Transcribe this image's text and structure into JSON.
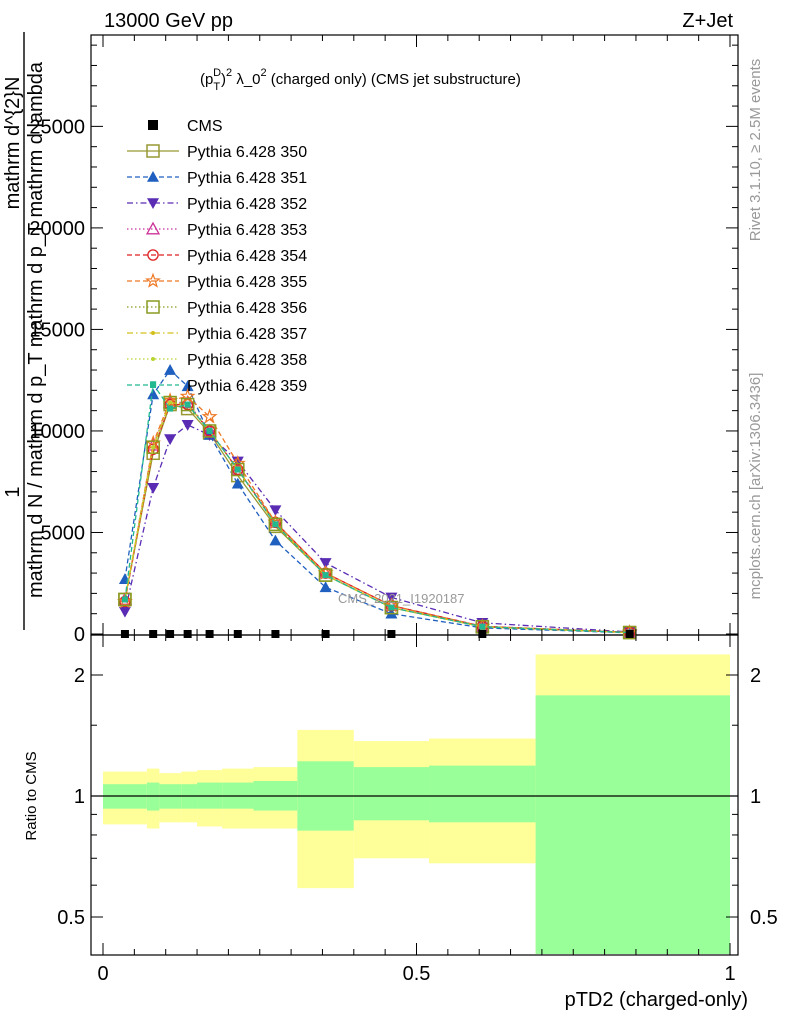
{
  "header": {
    "left": "13000 GeV pp",
    "right": "Z+Jet"
  },
  "plot": {
    "title": "(p_T^D)^2 λ_0^2 (charged only) (CMS jet substructure)",
    "ylabel_top": "1",
    "ylabel_numerator": "mathrm d^{2}N",
    "ylabel_denominator": "mathrm d N / mathrm d p_T mathrm d p_T mathrm d lambda",
    "xlabel": "pTD2 (charged-only)",
    "ratio_ylabel": "Ratio to CMS",
    "watermark": "CMS_2021_I1920187",
    "side_label_1": "Rivet 3.1.10, ≥ 2.5M events",
    "side_label_2": "mcplots.cern.ch [arXiv:1306.3436]"
  },
  "colors": {
    "band_inner": "#99ff99",
    "band_outer": "#ffff99",
    "cms": "#000000"
  },
  "chart_data": [
    {
      "type": "line",
      "title": "(p_T^D)^2 λ_0^2 (charged only) (CMS jet substructure)",
      "xlim": [
        0,
        1
      ],
      "ylim": [
        0,
        29500
      ],
      "yticks": [
        0,
        5000,
        10000,
        15000,
        20000,
        25000
      ],
      "ytick_labels": [
        "0",
        "5000",
        "10000",
        "15000",
        "20000",
        "25000"
      ],
      "xticks": [
        0,
        0.5,
        1
      ],
      "xtick_labels": [
        "0",
        "0.5",
        "1"
      ],
      "legend_placement": "top-left",
      "x": [
        0.035,
        0.08,
        0.107,
        0.135,
        0.17,
        0.215,
        0.275,
        0.355,
        0.46,
        0.605,
        0.84
      ],
      "series": [
        {
          "name": "CMS",
          "color": "#000000",
          "marker": "square-filled",
          "dash": "none",
          "values": [
            0,
            0,
            0,
            0,
            0,
            0,
            0,
            0,
            0,
            0,
            0
          ]
        },
        {
          "name": "Pythia 6.428 350",
          "color": "#999933",
          "marker": "square-open",
          "dash": "solid",
          "values": [
            1700,
            8900,
            11300,
            11100,
            9900,
            7800,
            5300,
            2900,
            1300,
            350,
            70
          ]
        },
        {
          "name": "Pythia 6.428 351",
          "color": "#1f5fbf",
          "marker": "triangle-up-filled",
          "dash": "dashed",
          "values": [
            2700,
            11800,
            13000,
            12200,
            9800,
            7400,
            4600,
            2300,
            1000,
            300,
            60
          ]
        },
        {
          "name": "Pythia 6.428 352",
          "color": "#5a2cb4",
          "marker": "triangle-down-filled",
          "dash": "dashdot",
          "values": [
            1100,
            7200,
            9600,
            10300,
            9800,
            8500,
            6100,
            3500,
            1800,
            550,
            100
          ]
        },
        {
          "name": "Pythia 6.428 353",
          "color": "#cc3399",
          "marker": "triangle-up-open",
          "dash": "dotted",
          "values": [
            1700,
            9300,
            11400,
            11400,
            10000,
            8100,
            5500,
            3000,
            1400,
            380,
            80
          ]
        },
        {
          "name": "Pythia 6.428 354",
          "color": "#dd2222",
          "marker": "circle-open",
          "dash": "dashed",
          "values": [
            1600,
            9100,
            11300,
            11300,
            10000,
            8100,
            5500,
            3000,
            1400,
            380,
            80
          ]
        },
        {
          "name": "Pythia 6.428 355",
          "color": "#ee7722",
          "marker": "star-open",
          "dash": "dashed",
          "values": [
            1600,
            9400,
            11500,
            11700,
            10700,
            8400,
            5500,
            3000,
            1400,
            370,
            80
          ]
        },
        {
          "name": "Pythia 6.428 356",
          "color": "#8a9a20",
          "marker": "square-open",
          "dash": "dotted",
          "values": [
            1700,
            9200,
            11400,
            11300,
            10000,
            8100,
            5400,
            2900,
            1300,
            360,
            70
          ]
        },
        {
          "name": "Pythia 6.428 357",
          "color": "#d4c01a",
          "marker": "small-dot",
          "dash": "dashdot",
          "values": [
            1700,
            9200,
            11400,
            11300,
            10000,
            8100,
            5400,
            2900,
            1300,
            360,
            70
          ]
        },
        {
          "name": "Pythia 6.428 358",
          "color": "#b8d430",
          "marker": "small-dot",
          "dash": "dotted",
          "values": [
            1700,
            9200,
            11400,
            11300,
            10000,
            8100,
            5400,
            2900,
            1300,
            360,
            70
          ]
        },
        {
          "name": "Pythia 6.428 359",
          "color": "#22b890",
          "marker": "small-square",
          "dash": "dashed",
          "values": [
            1700,
            12300,
            11100,
            11300,
            10000,
            8100,
            5400,
            2900,
            1300,
            360,
            70
          ]
        }
      ]
    },
    {
      "type": "area",
      "ylabel": "Ratio to CMS",
      "xlim": [
        0,
        1
      ],
      "ylim": [
        0.35,
        2.25
      ],
      "log_scale_y": true,
      "yticks": [
        0.5,
        1,
        2
      ],
      "ytick_labels": [
        "0.5",
        "1",
        "2"
      ],
      "bins": [
        {
          "x0": 0.0,
          "x1": 0.07,
          "inner": [
            0.93,
            1.07
          ],
          "outer": [
            0.85,
            1.15
          ]
        },
        {
          "x0": 0.07,
          "x1": 0.09,
          "inner": [
            0.92,
            1.08
          ],
          "outer": [
            0.83,
            1.17
          ]
        },
        {
          "x0": 0.09,
          "x1": 0.125,
          "inner": [
            0.93,
            1.07
          ],
          "outer": [
            0.86,
            1.14
          ]
        },
        {
          "x0": 0.125,
          "x1": 0.15,
          "inner": [
            0.93,
            1.07
          ],
          "outer": [
            0.86,
            1.15
          ]
        },
        {
          "x0": 0.15,
          "x1": 0.19,
          "inner": [
            0.93,
            1.08
          ],
          "outer": [
            0.84,
            1.16
          ]
        },
        {
          "x0": 0.19,
          "x1": 0.24,
          "inner": [
            0.93,
            1.08
          ],
          "outer": [
            0.83,
            1.17
          ]
        },
        {
          "x0": 0.24,
          "x1": 0.31,
          "inner": [
            0.92,
            1.09
          ],
          "outer": [
            0.83,
            1.18
          ]
        },
        {
          "x0": 0.31,
          "x1": 0.4,
          "inner": [
            0.82,
            1.22
          ],
          "outer": [
            0.59,
            1.46
          ]
        },
        {
          "x0": 0.4,
          "x1": 0.52,
          "inner": [
            0.87,
            1.18
          ],
          "outer": [
            0.7,
            1.37
          ]
        },
        {
          "x0": 0.52,
          "x1": 0.69,
          "inner": [
            0.86,
            1.19
          ],
          "outer": [
            0.68,
            1.39
          ]
        },
        {
          "x0": 0.69,
          "x1": 1.0,
          "inner": [
            0.35,
            1.78
          ],
          "outer": [
            0.35,
            2.25
          ]
        }
      ]
    }
  ]
}
